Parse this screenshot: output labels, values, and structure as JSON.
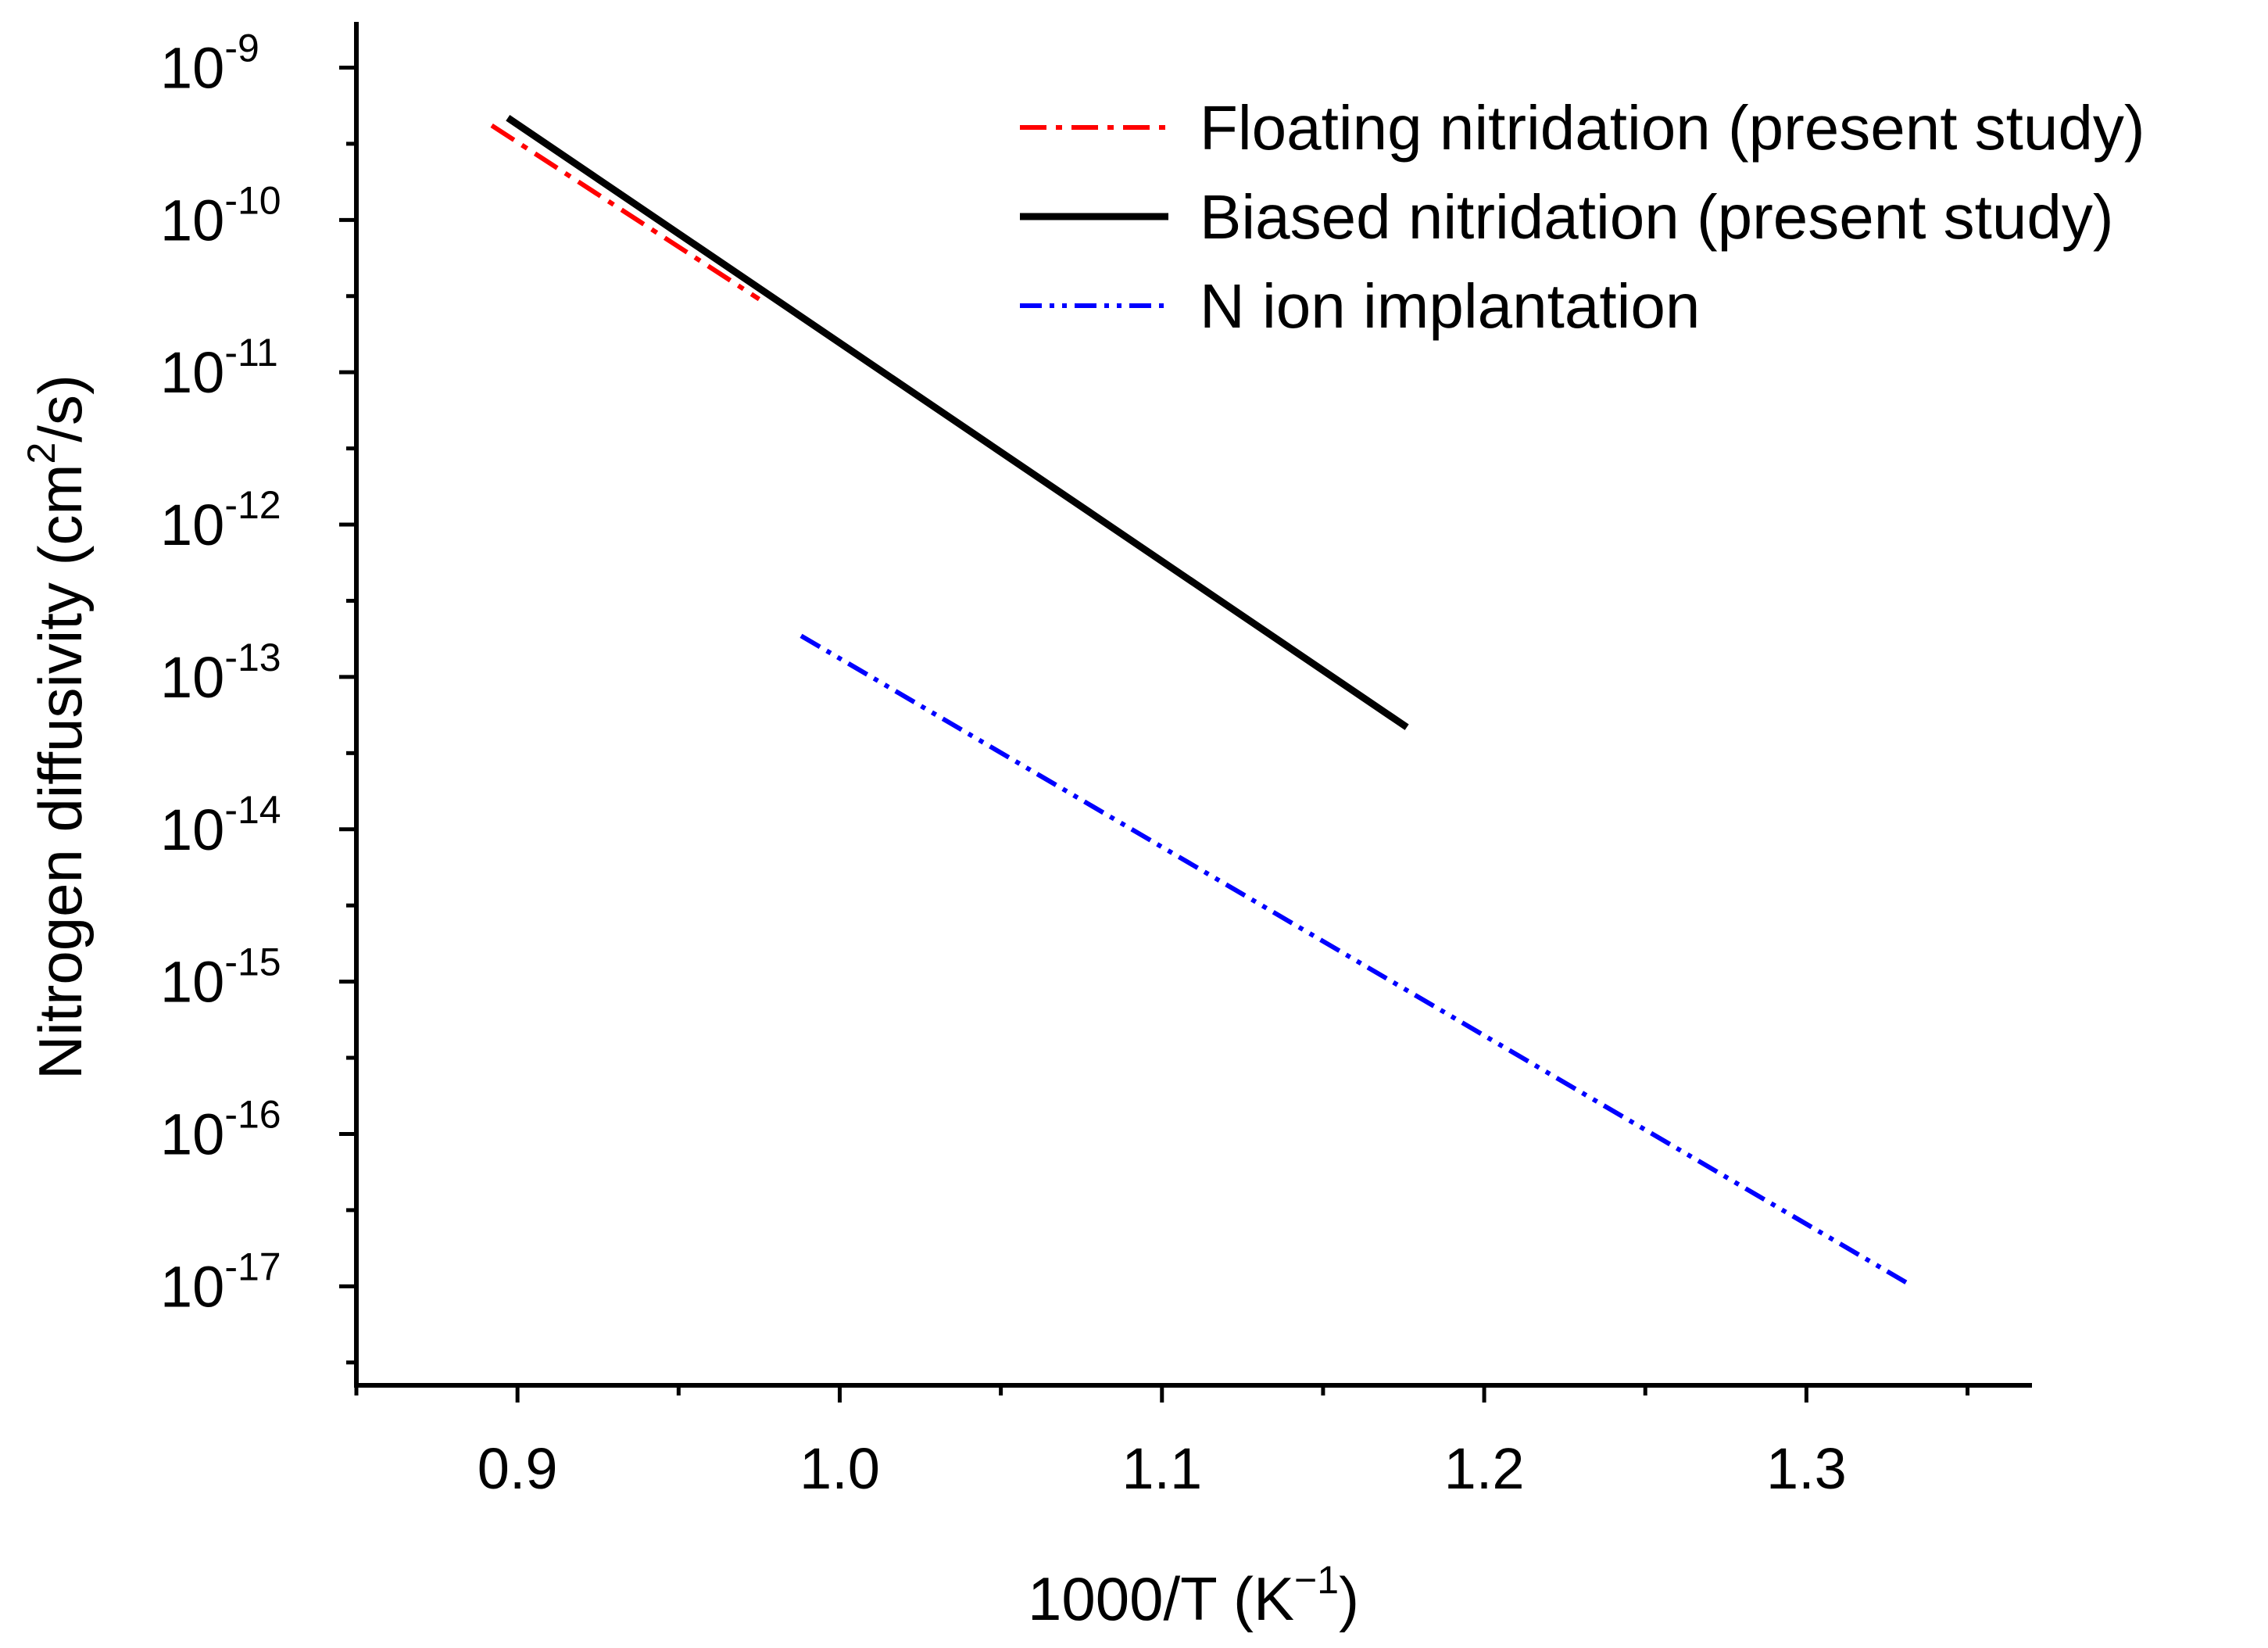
{
  "chart_data": {
    "type": "line",
    "title": "",
    "xlabel": "1000/T (K",
    "xlabel_sup": "−1",
    "xlabel_close": ")",
    "ylabel": "Nitrogen diffusivity (cm",
    "ylabel_sup": "2",
    "ylabel_close": "/s)",
    "xlim": [
      0.85,
      1.37
    ],
    "ylim_log10": [
      -17.65,
      -8.7
    ],
    "yscale": "log",
    "xticks": [
      {
        "value": 0.9,
        "label": "0.9"
      },
      {
        "value": 1.0,
        "label": "1.0"
      },
      {
        "value": 1.1,
        "label": "1.1"
      },
      {
        "value": 1.2,
        "label": "1.2"
      },
      {
        "value": 1.3,
        "label": "1.3"
      }
    ],
    "xticks_minor": [
      0.85,
      0.95,
      1.05,
      1.15,
      1.25,
      1.35
    ],
    "yticks": [
      {
        "exp": -9,
        "base": "10",
        "sup": "-9"
      },
      {
        "exp": -10,
        "base": "10",
        "sup": "-10"
      },
      {
        "exp": -11,
        "base": "10",
        "sup": "-11"
      },
      {
        "exp": -12,
        "base": "10",
        "sup": "-12"
      },
      {
        "exp": -13,
        "base": "10",
        "sup": "-13"
      },
      {
        "exp": -14,
        "base": "10",
        "sup": "-14"
      },
      {
        "exp": -15,
        "base": "10",
        "sup": "-15"
      },
      {
        "exp": -16,
        "base": "10",
        "sup": "-16"
      },
      {
        "exp": -17,
        "base": "10",
        "sup": "-17"
      }
    ],
    "series": [
      {
        "name": "Floating nitridation (present study)",
        "color": "#ff0000",
        "style": "dashdot",
        "x": [
          0.892,
          0.975
        ],
        "y_log10": [
          -9.38,
          -10.52
        ]
      },
      {
        "name": "Biased nitridation (present study)",
        "color": "#000000",
        "style": "solid",
        "x": [
          0.897,
          1.176
        ],
        "y_log10": [
          -9.33,
          -13.33
        ]
      },
      {
        "name": "N ion implantation",
        "color": "#0000ff",
        "style": "dashdotdot",
        "x": [
          0.988,
          1.333
        ],
        "y_log10": [
          -12.73,
          -17.0
        ]
      }
    ],
    "legend_position": "top-right",
    "grid": false
  }
}
